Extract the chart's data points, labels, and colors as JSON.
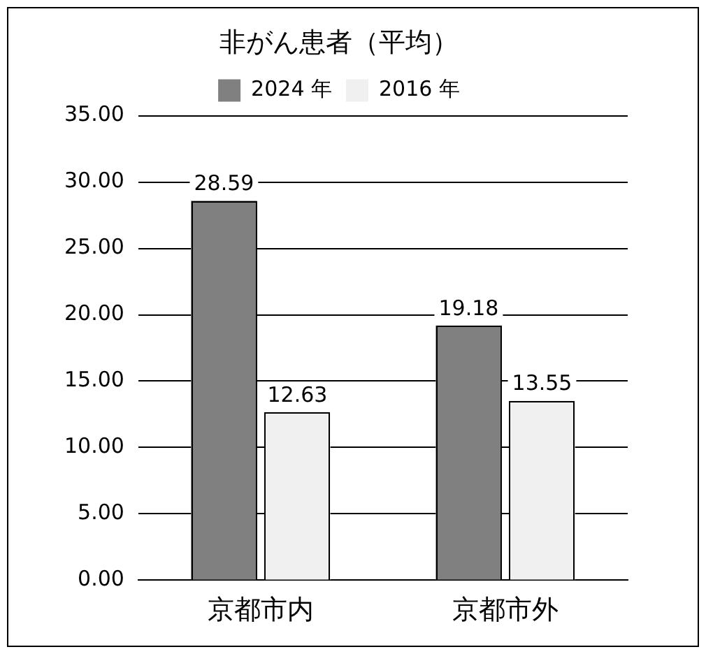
{
  "chart_data": {
    "type": "bar",
    "title": "非がん患者（平均）",
    "categories": [
      "京都市内",
      "京都市外"
    ],
    "series": [
      {
        "name": "2024 年",
        "color": "#808080",
        "values": [
          28.59,
          19.18
        ]
      },
      {
        "name": "2016 年",
        "color": "#f0f0f0",
        "values": [
          12.63,
          13.55
        ]
      }
    ],
    "ylim": [
      0,
      35
    ],
    "yticks": [
      {
        "value": 0,
        "label": "0.00"
      },
      {
        "value": 5,
        "label": "5.00"
      },
      {
        "value": 10,
        "label": "10.00"
      },
      {
        "value": 15,
        "label": "15.00"
      },
      {
        "value": 20,
        "label": "20.00"
      },
      {
        "value": 25,
        "label": "25.00"
      },
      {
        "value": 30,
        "label": "30.00"
      },
      {
        "value": 35,
        "label": "35.00"
      }
    ],
    "grid": "y",
    "legend": "top",
    "data_labels": true
  }
}
